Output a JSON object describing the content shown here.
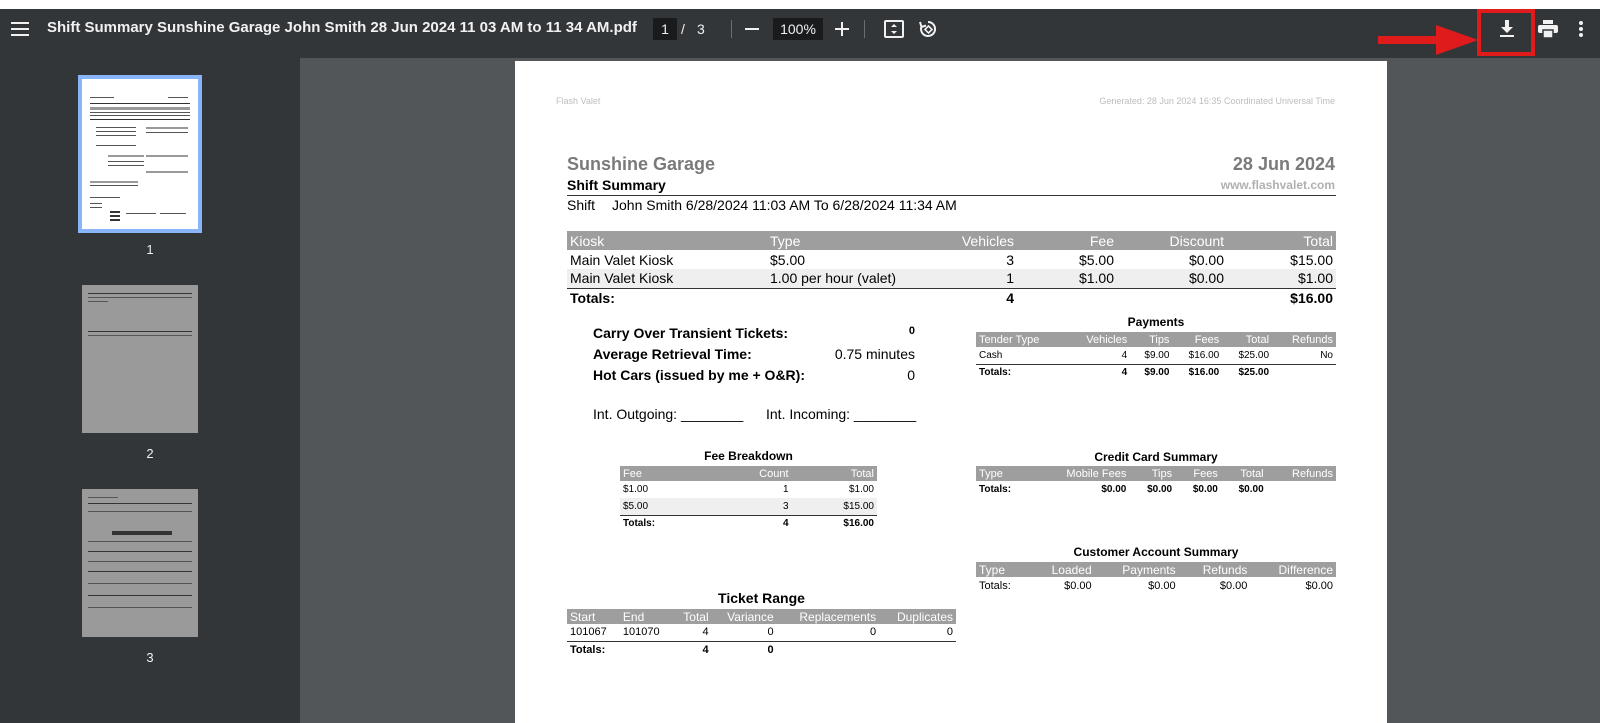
{
  "toolbar": {
    "title": "Shift Summary Sunshine Garage John Smith 28 Jun 2024 11 03 AM to 11 34 AM.pdf",
    "current_page": "1",
    "page_separator": "/",
    "total_pages": "3",
    "zoom": "100%"
  },
  "thumbnails": [
    {
      "label": "1"
    },
    {
      "label": "2"
    },
    {
      "label": "3"
    }
  ],
  "document": {
    "header_left": "Flash Valet",
    "header_right": "Generated: 28 Jun 2024 16:35 Coordinated Universal Time",
    "garage_name": "Sunshine Garage",
    "date": "28 Jun 2024",
    "report_title": "Shift Summary",
    "website": "www.flashvalet.com",
    "shift_label": "Shift",
    "shift_value": "John Smith 6/28/2024 11:03 AM To 6/28/2024 11:34 AM",
    "kiosk_table": {
      "headers": [
        "Kiosk",
        "Type",
        "Vehicles",
        "Fee",
        "Discount",
        "Total"
      ],
      "rows": [
        [
          "Main Valet Kiosk",
          "$5.00",
          "3",
          "$5.00",
          "$0.00",
          "$15.00"
        ],
        [
          "Main Valet Kiosk",
          "1.00 per hour (valet)",
          "1",
          "$1.00",
          "$0.00",
          "$1.00"
        ]
      ],
      "totals": [
        "Totals:",
        "",
        "4",
        "",
        "",
        "$16.00"
      ]
    },
    "stats": [
      {
        "label": "Carry Over Transient Tickets:",
        "value": "0"
      },
      {
        "label": "Average Retrieval Time:",
        "value": "0.75 minutes"
      },
      {
        "label": "Hot Cars (issued by me + O&R):",
        "value": "0"
      }
    ],
    "int_outgoing": "Int. Outgoing: ________",
    "int_incoming": "Int. Incoming: ________",
    "payments": {
      "title": "Payments",
      "headers": [
        "Tender Type",
        "Vehicles",
        "Tips",
        "Fees",
        "Total",
        "Refunds"
      ],
      "rows": [
        [
          "Cash",
          "4",
          "$9.00",
          "$16.00",
          "$25.00",
          "No"
        ]
      ],
      "totals": [
        "Totals:",
        "4",
        "$9.00",
        "$16.00",
        "$25.00",
        ""
      ]
    },
    "fee_breakdown": {
      "title": "Fee Breakdown",
      "headers": [
        "Fee",
        "Count",
        "Total"
      ],
      "rows": [
        [
          "$1.00",
          "1",
          "$1.00"
        ],
        [
          "$5.00",
          "3",
          "$15.00"
        ]
      ],
      "totals": [
        "Totals:",
        "4",
        "$16.00"
      ]
    },
    "credit_card": {
      "title": "Credit Card Summary",
      "headers": [
        "Type",
        "Mobile Fees",
        "Tips",
        "Fees",
        "Total",
        "Refunds"
      ],
      "totals": [
        "Totals:",
        "$0.00",
        "$0.00",
        "$0.00",
        "$0.00",
        ""
      ]
    },
    "customer_account": {
      "title": "Customer Account Summary",
      "headers": [
        "Type",
        "Loaded",
        "Payments",
        "Refunds",
        "Difference"
      ],
      "totals": [
        "Totals:",
        "$0.00",
        "$0.00",
        "$0.00",
        "$0.00"
      ]
    },
    "ticket_range": {
      "title": "Ticket Range",
      "headers": [
        "Start",
        "End",
        "Total",
        "Variance",
        "Replacements",
        "Duplicates"
      ],
      "rows": [
        [
          "101067",
          "101070",
          "4",
          "0",
          "0",
          "0"
        ]
      ],
      "totals": [
        "Totals:",
        "",
        "4",
        "0",
        "",
        ""
      ]
    }
  },
  "colors": {
    "toolbar_bg": "#323639",
    "viewer_bg": "#525659",
    "highlight": "#e01b1b",
    "thumb_selected": "#8ab4f8",
    "table_header": "#9e9e9e"
  }
}
